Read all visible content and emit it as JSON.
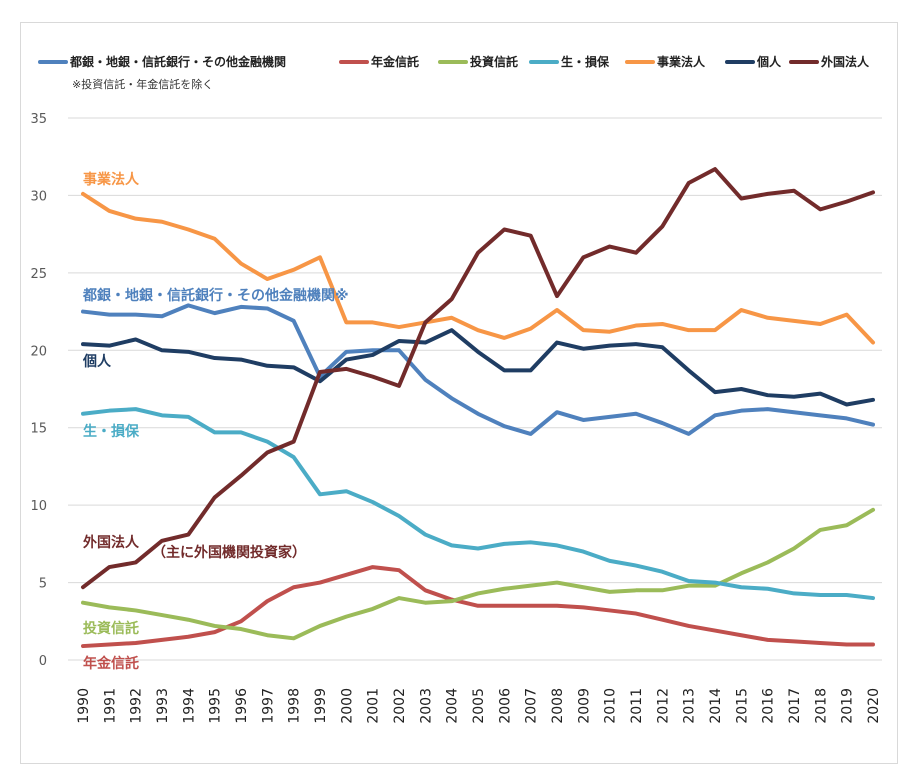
{
  "chart_data": {
    "type": "line",
    "note": "※投資信託・年金信託を除く",
    "ylim": [
      0,
      35
    ],
    "yticks": [
      0,
      5,
      10,
      15,
      20,
      25,
      30,
      35
    ],
    "grid": true,
    "legend_position": "top",
    "x": [
      "1990",
      "1991",
      "1992",
      "1993",
      "1994",
      "1995",
      "1996",
      "1997",
      "1998",
      "1999",
      "2000",
      "2001",
      "2002",
      "2003",
      "2004",
      "2005",
      "2006",
      "2007",
      "2008",
      "2009",
      "2010",
      "2011",
      "2012",
      "2013",
      "2014",
      "2015",
      "2016",
      "2017",
      "2018",
      "2019",
      "2020"
    ],
    "series": [
      {
        "key": "banks",
        "name": "都銀・地銀・信託銀行・その他金融機関",
        "color": "#4f81bd",
        "values": [
          22.5,
          22.3,
          22.3,
          22.2,
          22.9,
          22.4,
          22.8,
          22.7,
          21.9,
          18.3,
          19.9,
          20.0,
          20.0,
          18.1,
          16.9,
          15.9,
          15.1,
          14.6,
          16.0,
          15.5,
          15.7,
          15.9,
          15.3,
          14.6,
          15.8,
          16.1,
          16.2,
          16.0,
          15.8,
          15.6,
          15.2
        ]
      },
      {
        "key": "pension",
        "name": "年金信託",
        "color": "#c0504d",
        "values": [
          0.9,
          1.0,
          1.1,
          1.3,
          1.5,
          1.8,
          2.5,
          3.8,
          4.7,
          5.0,
          5.5,
          6.0,
          5.8,
          4.5,
          3.9,
          3.5,
          3.5,
          3.5,
          3.5,
          3.4,
          3.2,
          3.0,
          2.6,
          2.2,
          1.9,
          1.6,
          1.3,
          1.2,
          1.1,
          1.0,
          1.0
        ]
      },
      {
        "key": "invtrust",
        "name": "投資信託",
        "color": "#9bbb59",
        "values": [
          3.7,
          3.4,
          3.2,
          2.9,
          2.6,
          2.2,
          2.0,
          1.6,
          1.4,
          2.2,
          2.8,
          3.3,
          4.0,
          3.7,
          3.8,
          4.3,
          4.6,
          4.8,
          5.0,
          4.7,
          4.4,
          4.5,
          4.5,
          4.8,
          4.8,
          5.6,
          6.3,
          7.2,
          8.4,
          8.7,
          9.7
        ]
      },
      {
        "key": "insurance",
        "name": "生・損保",
        "color": "#4bacc6",
        "values": [
          15.9,
          16.1,
          16.2,
          15.8,
          15.7,
          14.7,
          14.7,
          14.1,
          13.1,
          10.7,
          10.9,
          10.2,
          9.3,
          8.1,
          7.4,
          7.2,
          7.5,
          7.6,
          7.4,
          7.0,
          6.4,
          6.1,
          5.7,
          5.1,
          5.0,
          4.7,
          4.6,
          4.3,
          4.2,
          4.2,
          4.0
        ]
      },
      {
        "key": "corp",
        "name": "事業法人",
        "color": "#f79646",
        "values": [
          30.1,
          29.0,
          28.5,
          28.3,
          27.8,
          27.2,
          25.6,
          24.6,
          25.2,
          26.0,
          21.8,
          21.8,
          21.5,
          21.8,
          22.1,
          21.3,
          20.8,
          21.4,
          22.6,
          21.3,
          21.2,
          21.6,
          21.7,
          21.3,
          21.3,
          22.6,
          22.1,
          21.9,
          21.7,
          22.3,
          20.5
        ]
      },
      {
        "key": "individual",
        "name": "個人",
        "color": "#1f3d63",
        "values": [
          20.4,
          20.3,
          20.7,
          20.0,
          19.9,
          19.5,
          19.4,
          19.0,
          18.9,
          18.0,
          19.4,
          19.7,
          20.6,
          20.5,
          21.3,
          19.9,
          18.7,
          18.7,
          20.5,
          20.1,
          20.3,
          20.4,
          20.2,
          18.7,
          17.3,
          17.5,
          17.1,
          17.0,
          17.2,
          16.5,
          16.8
        ]
      },
      {
        "key": "foreign",
        "name": "外国法人",
        "color": "#722b2b",
        "values": [
          4.7,
          6.0,
          6.3,
          7.7,
          8.1,
          10.5,
          11.9,
          13.4,
          14.1,
          18.6,
          18.8,
          18.3,
          17.7,
          21.8,
          23.3,
          26.3,
          27.8,
          27.4,
          23.5,
          26.0,
          26.7,
          26.3,
          28.0,
          30.8,
          31.7,
          29.8,
          30.1,
          30.3,
          29.1,
          29.6,
          30.2
        ]
      }
    ],
    "annotations": [
      {
        "key": "corp",
        "text": "事業法人",
        "color": "#f79646"
      },
      {
        "key": "banks",
        "text": "都銀・地銀・信託銀行・その他金融機関※",
        "color": "#4f81bd"
      },
      {
        "key": "individual",
        "text": "個人",
        "color": "#1f3d63"
      },
      {
        "key": "insurance",
        "text": "生・損保",
        "color": "#4bacc6"
      },
      {
        "key": "foreign",
        "text": "外国法人",
        "color": "#722b2b"
      },
      {
        "key": "foreign_sub",
        "text": "（主に外国機関投資家）",
        "color": "#722b2b"
      },
      {
        "key": "invtrust",
        "text": "投資信託",
        "color": "#9bbb59"
      },
      {
        "key": "pension",
        "text": "年金信託",
        "color": "#c0504d"
      }
    ]
  }
}
